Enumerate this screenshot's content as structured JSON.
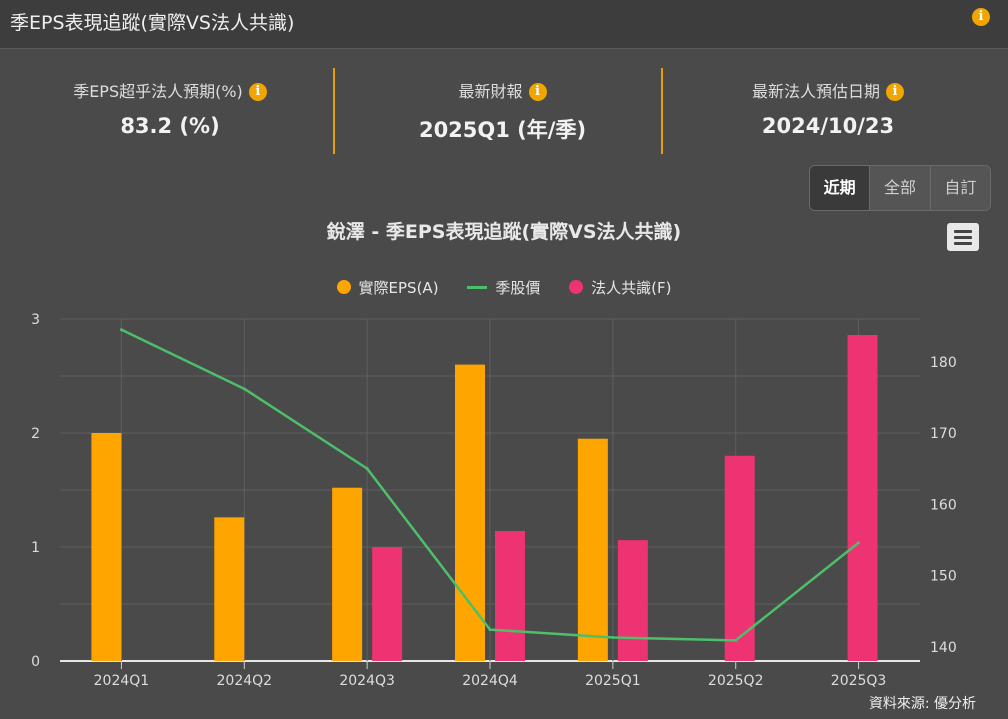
{
  "header": {
    "title": "季EPS表現追蹤(實際VS法人共識)",
    "info_icon": "i"
  },
  "stats": [
    {
      "label": "季EPS超乎法人預期(%)",
      "value": "83.2 (%)"
    },
    {
      "label": "最新財報",
      "value": "2025Q1 (年/季)"
    },
    {
      "label": "最新法人預估日期",
      "value": "2024/10/23"
    }
  ],
  "range_buttons": [
    {
      "label": "近期",
      "active": true
    },
    {
      "label": "全部",
      "active": false
    },
    {
      "label": "自訂",
      "active": false
    }
  ],
  "colors": {
    "actual": "#ffa500",
    "price": "#4dbf6a",
    "consensus": "#ee3372",
    "accent": "#f0a500"
  },
  "chart_data": {
    "type": "bar",
    "title": "銳澤 - 季EPS表現追蹤(實際VS法人共識)",
    "categories": [
      "2024Q1",
      "2024Q2",
      "2024Q3",
      "2024Q4",
      "2025Q1",
      "2025Q2",
      "2025Q3"
    ],
    "series": [
      {
        "name": "實際EPS(A)",
        "type": "bar",
        "axis": "left",
        "values": [
          2.0,
          1.26,
          1.52,
          2.6,
          1.95,
          null,
          null
        ]
      },
      {
        "name": "季股價",
        "type": "line",
        "axis": "right",
        "values": [
          184.5,
          176.2,
          165.0,
          142.4,
          141.3,
          140.9,
          154.6
        ]
      },
      {
        "name": "法人共識(F)",
        "type": "bar",
        "axis": "left",
        "values": [
          null,
          null,
          1.0,
          1.14,
          1.06,
          1.8,
          2.86
        ]
      }
    ],
    "y_left": {
      "min": 0,
      "max": 3,
      "ticks": [
        "0",
        "1",
        "2",
        "3"
      ]
    },
    "y_right": {
      "min": 138,
      "max": 186,
      "ticks": [
        "140",
        "150",
        "160",
        "170",
        "180"
      ]
    },
    "grid": true,
    "legend_position": "top-center"
  },
  "source": "資料來源: 優分析"
}
